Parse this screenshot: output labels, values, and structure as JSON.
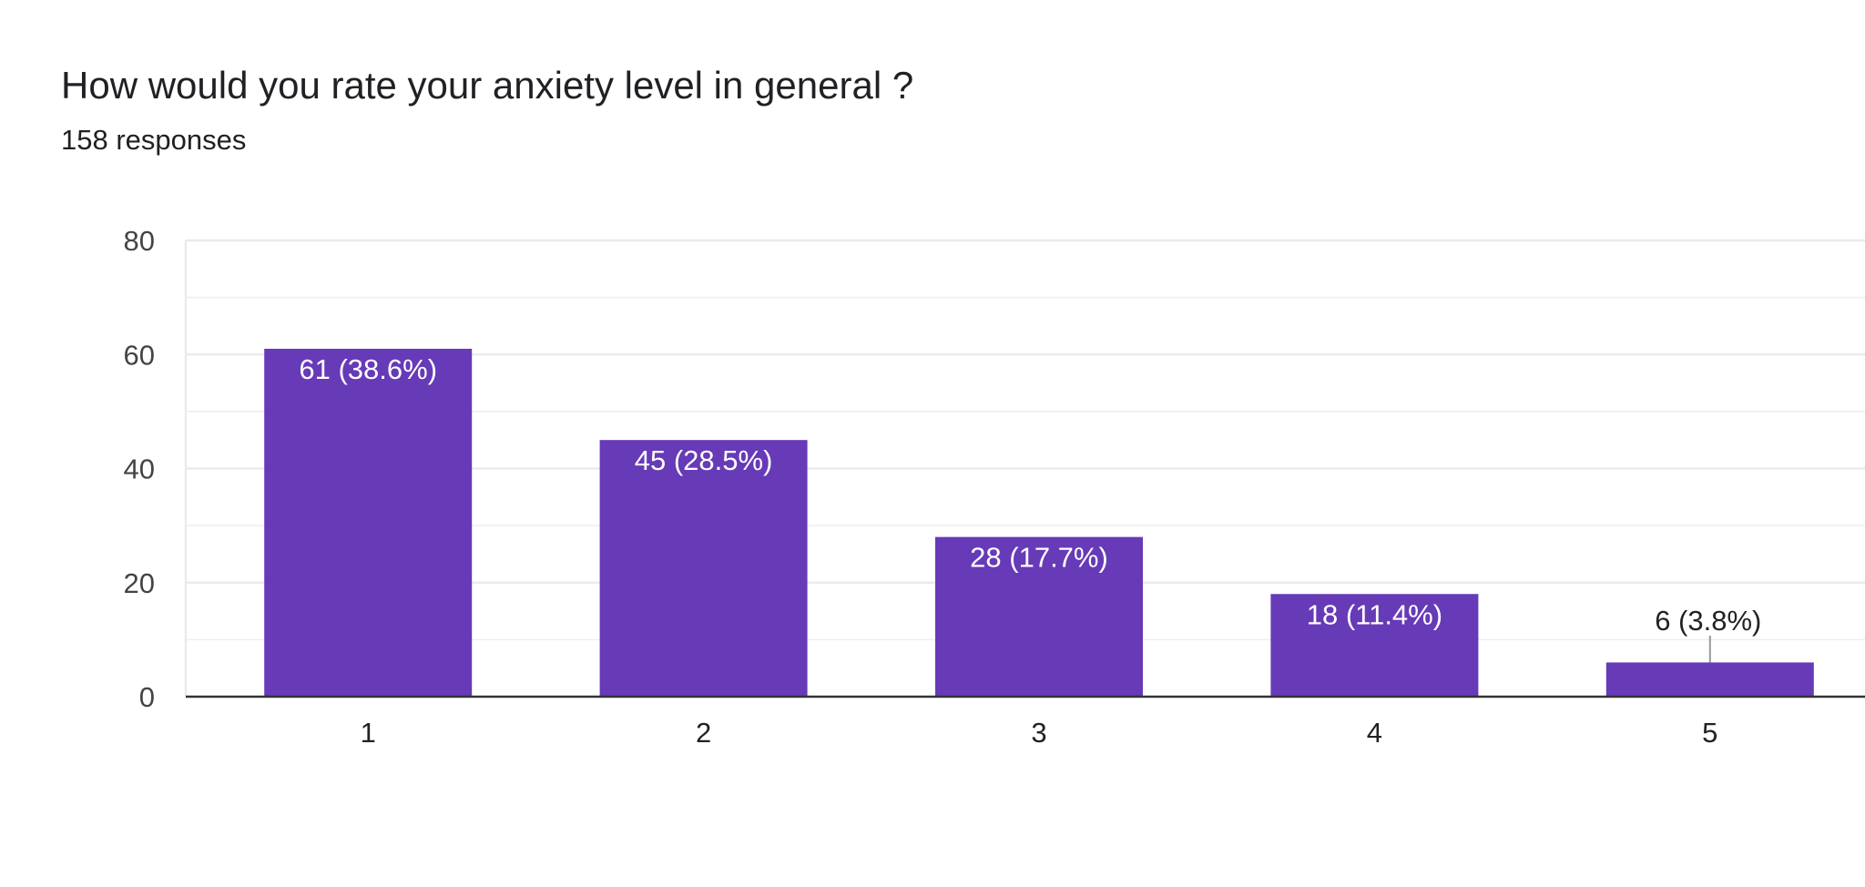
{
  "question": {
    "title": "How would you rate your anxiety level in general ?",
    "responses": "158 responses"
  },
  "colors": {
    "bar": "#673ab7",
    "grid": "#ebebeb",
    "axis": "#333333",
    "inside_label": "#ffffff",
    "outside_label": "#222222",
    "leader_line": "#999999"
  },
  "chart_data": {
    "type": "bar",
    "title": "How would you rate your anxiety level in general ?",
    "xlabel": "",
    "ylabel": "",
    "categories": [
      "1",
      "2",
      "3",
      "4",
      "5"
    ],
    "values": [
      61,
      45,
      28,
      18,
      6
    ],
    "data_labels": [
      "61 (38.6%)",
      "45 (28.5%)",
      "28 (17.7%)",
      "18 (11.4%)",
      "6 (3.8%)"
    ],
    "ylim": [
      0,
      80
    ],
    "yticks": [
      0,
      20,
      40,
      60,
      80
    ],
    "grid": true,
    "legend": "none"
  }
}
